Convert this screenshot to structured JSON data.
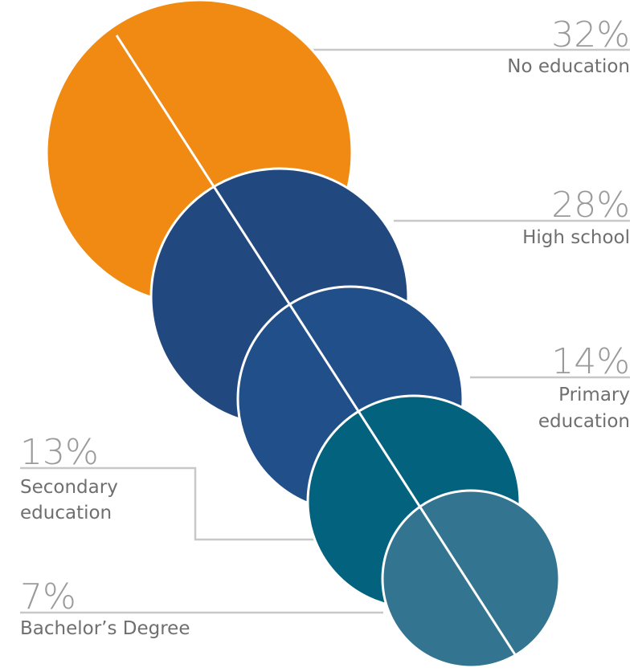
{
  "chart_data": {
    "type": "bubble",
    "categories": [
      "No education",
      "High school",
      "Primary education",
      "Secondary education",
      "Bachelor’s Degree"
    ],
    "values": [
      32,
      28,
      14,
      13,
      7
    ],
    "percent_labels": [
      "32%",
      "28%",
      "14%",
      "13%",
      "7%"
    ],
    "label_lines": [
      [
        "No education"
      ],
      [
        "High school"
      ],
      [
        "Primary",
        "education"
      ],
      [
        "Secondary",
        "education"
      ],
      [
        "Bachelor’s Degree"
      ]
    ],
    "colors": [
      "#f08a12",
      "#22497f",
      "#204f8a",
      "#03627e",
      "#337590"
    ],
    "label_color": "#6f6f6f",
    "percent_color": "#9a9a9a",
    "leader_color": "#c8c8c8"
  }
}
